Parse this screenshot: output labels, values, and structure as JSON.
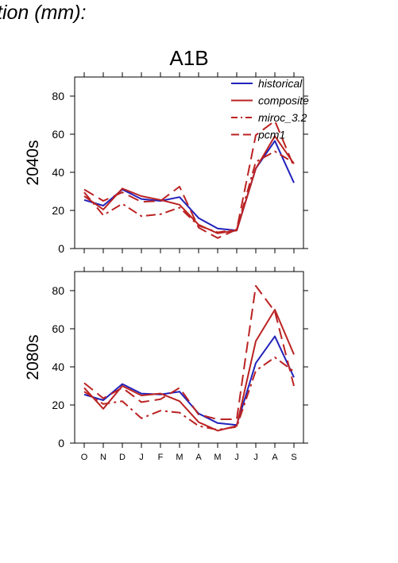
{
  "header": {
    "title": "tion (mm):"
  },
  "chart_data": {
    "type": "line",
    "scenario": "A1B",
    "categories": [
      "O",
      "N",
      "D",
      "J",
      "F",
      "M",
      "A",
      "M",
      "J",
      "J",
      "A",
      "S"
    ],
    "ylim": [
      0,
      90
    ],
    "yticks": [
      0,
      20,
      40,
      60,
      80
    ],
    "legend": {
      "placement": "top-right",
      "entries": [
        {
          "name": "historical",
          "color": "#2222bb",
          "dash": "solid"
        },
        {
          "name": "composite",
          "color": "#bb2222",
          "dash": "solid"
        },
        {
          "name": "miroc_3.2",
          "color": "#bb2222",
          "dash": "dashdot"
        },
        {
          "name": "pcm1",
          "color": "#bb2222",
          "dash": "dashed"
        }
      ]
    },
    "panels": [
      {
        "label": "2040s",
        "series": [
          {
            "name": "historical",
            "values": [
              25.5,
              22.5,
              31,
              26,
              25,
              27,
              16,
              10.5,
              9.5,
              42,
              56.5,
              34.5
            ]
          },
          {
            "name": "composite",
            "values": [
              27.5,
              20.5,
              31.5,
              27.5,
              25.5,
              23,
              12.5,
              8,
              9.5,
              42,
              59,
              44.5
            ]
          },
          {
            "name": "miroc_3.2",
            "values": [
              29.5,
              17.5,
              23.5,
              17,
              18,
              21.5,
              12,
              8.5,
              10,
              45.5,
              51,
              45
            ]
          },
          {
            "name": "pcm1",
            "values": [
              31,
              25,
              29.5,
              24.5,
              25,
              32.5,
              11,
              5.5,
              10,
              59.5,
              67,
              43
            ]
          }
        ]
      },
      {
        "label": "2080s",
        "series": [
          {
            "name": "historical",
            "values": [
              25.5,
              22.5,
              31,
              26,
              25.5,
              27,
              15.5,
              10.5,
              9.5,
              42,
              56,
              34.5
            ]
          },
          {
            "name": "composite",
            "values": [
              29,
              18,
              30,
              25,
              26,
              22,
              11,
              6.5,
              9,
              53.5,
              70,
              46.5
            ]
          },
          {
            "name": "miroc_3.2",
            "values": [
              27,
              20.5,
              22,
              13,
              17,
              16,
              9,
              7,
              8.5,
              38,
              45,
              37.5
            ]
          },
          {
            "name": "pcm1",
            "values": [
              31.5,
              23.5,
              29,
              21.5,
              23,
              29,
              15,
              12.5,
              12.5,
              82.5,
              69,
              30
            ]
          }
        ]
      }
    ]
  }
}
